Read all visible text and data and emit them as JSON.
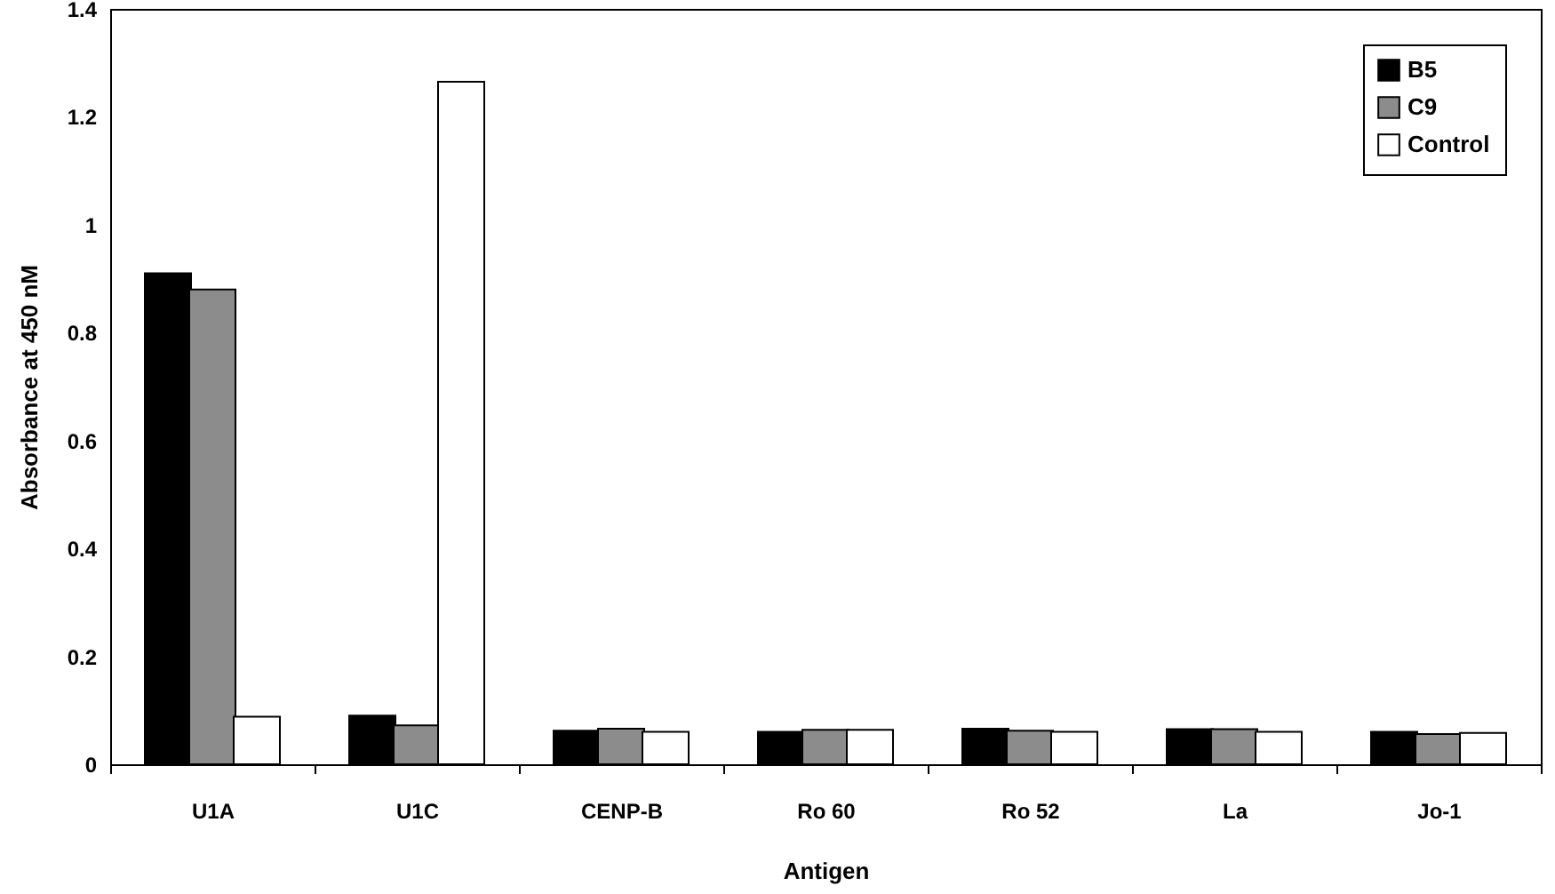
{
  "chart_data": {
    "type": "bar",
    "xlabel": "Antigen",
    "ylabel": "Absorbance at 450 nM",
    "categories": [
      "U1A",
      "U1C",
      "CENP-B",
      "Ro 60",
      "Ro 52",
      "La",
      "Jo-1"
    ],
    "series": [
      {
        "name": "B5",
        "color": "#000000",
        "values": [
          0.91,
          0.09,
          0.062,
          0.06,
          0.066,
          0.065,
          0.06
        ]
      },
      {
        "name": "C9",
        "color": "#8c8c8c",
        "values": [
          0.88,
          0.072,
          0.066,
          0.064,
          0.062,
          0.065,
          0.056
        ]
      },
      {
        "name": "Control",
        "color": "#ffffff",
        "values": [
          0.088,
          1.265,
          0.06,
          0.064,
          0.06,
          0.06,
          0.058
        ]
      }
    ],
    "ylim": [
      0,
      1.4
    ],
    "yticks": [
      0,
      0.2,
      0.4,
      0.6,
      0.8,
      1,
      1.2,
      1.4
    ],
    "grid": false,
    "legend": "top right"
  }
}
